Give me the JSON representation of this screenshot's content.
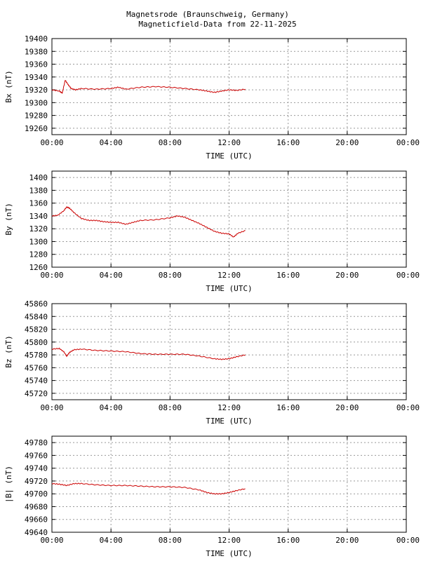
{
  "header": {
    "title_line1": "Magnetsrode (Braunschweig, Germany)",
    "title_line2": "Magneticfield-Data from 22-11-2025"
  },
  "colors": {
    "series": "#cc0000",
    "grid": "#999999",
    "frame": "#000000"
  },
  "x_ticks": [
    "00:00",
    "04:00",
    "08:00",
    "12:00",
    "16:00",
    "20:00",
    "00:00"
  ],
  "chart_data": [
    {
      "type": "line",
      "ylabel": "Bx (nT)",
      "xlabel": "TIME (UTC)",
      "xlim": [
        0,
        24
      ],
      "ylim": [
        19250,
        19400
      ],
      "yticks": [
        19260,
        19280,
        19300,
        19320,
        19340,
        19360,
        19380,
        19400
      ],
      "grid": true,
      "series": [
        {
          "x": [
            0,
            0.5,
            0.7,
            0.9,
            1.1,
            1.3,
            1.6,
            2.0,
            3.0,
            4.0,
            4.5,
            5.0,
            6.0,
            7.0,
            8.0,
            9.0,
            10.0,
            10.5,
            11.0,
            11.5,
            12.0,
            12.5,
            13.1
          ],
          "y": [
            19320,
            19318,
            19315,
            19335,
            19328,
            19322,
            19320,
            19322,
            19321,
            19322,
            19324,
            19321,
            19324,
            19325,
            19324,
            19322,
            19320,
            19318,
            19316,
            19318,
            19320,
            19319,
            19321
          ]
        }
      ]
    },
    {
      "type": "line",
      "ylabel": "By (nT)",
      "xlabel": "TIME (UTC)",
      "xlim": [
        0,
        24
      ],
      "ylim": [
        1260,
        1410
      ],
      "yticks": [
        1260,
        1280,
        1300,
        1320,
        1340,
        1360,
        1380,
        1400
      ],
      "grid": true,
      "series": [
        {
          "x": [
            0,
            0.4,
            0.8,
            1.0,
            1.2,
            1.5,
            2.0,
            2.5,
            3.0,
            3.5,
            4.0,
            4.5,
            5.0,
            5.5,
            6.0,
            7.0,
            8.0,
            8.5,
            9.0,
            9.5,
            10.0,
            10.5,
            11.0,
            11.5,
            12.0,
            12.3,
            12.6,
            13.1
          ],
          "y": [
            1340,
            1341,
            1348,
            1354,
            1352,
            1345,
            1336,
            1333,
            1333,
            1331,
            1330,
            1330,
            1327,
            1330,
            1333,
            1334,
            1337,
            1340,
            1338,
            1333,
            1328,
            1322,
            1316,
            1313,
            1312,
            1307,
            1313,
            1317
          ]
        }
      ]
    },
    {
      "type": "line",
      "ylabel": "Bz (nT)",
      "xlabel": "TIME (UTC)",
      "xlim": [
        0,
        24
      ],
      "ylim": [
        45710,
        45860
      ],
      "yticks": [
        45720,
        45740,
        45760,
        45780,
        45800,
        45820,
        45840,
        45860
      ],
      "grid": true,
      "series": [
        {
          "x": [
            0,
            0.5,
            0.8,
            1.0,
            1.2,
            1.5,
            2.0,
            3.0,
            4.0,
            5.0,
            6.0,
            7.0,
            8.0,
            9.0,
            10.0,
            11.0,
            11.5,
            12.0,
            12.5,
            13.1
          ],
          "y": [
            45789,
            45790,
            45785,
            45778,
            45784,
            45788,
            45789,
            45787,
            45786,
            45785,
            45782,
            45781,
            45781,
            45781,
            45778,
            45774,
            45773,
            45774,
            45777,
            45780
          ]
        }
      ]
    },
    {
      "type": "line",
      "ylabel": "|B| (nT)",
      "xlabel": "TIME (UTC)",
      "xlim": [
        0,
        24
      ],
      "ylim": [
        49640,
        49790
      ],
      "yticks": [
        49640,
        49660,
        49680,
        49700,
        49720,
        49740,
        49760,
        49780
      ],
      "grid": true,
      "series": [
        {
          "x": [
            0,
            0.5,
            1.0,
            1.5,
            2.0,
            3.0,
            4.0,
            5.0,
            6.0,
            7.0,
            8.0,
            9.0,
            10.0,
            10.5,
            11.0,
            11.5,
            12.0,
            12.5,
            13.1
          ],
          "y": [
            49716,
            49715,
            49713,
            49716,
            49716,
            49714,
            49713,
            49713,
            49712,
            49711,
            49711,
            49710,
            49706,
            49702,
            49700,
            49700,
            49702,
            49705,
            49708
          ]
        }
      ]
    }
  ]
}
